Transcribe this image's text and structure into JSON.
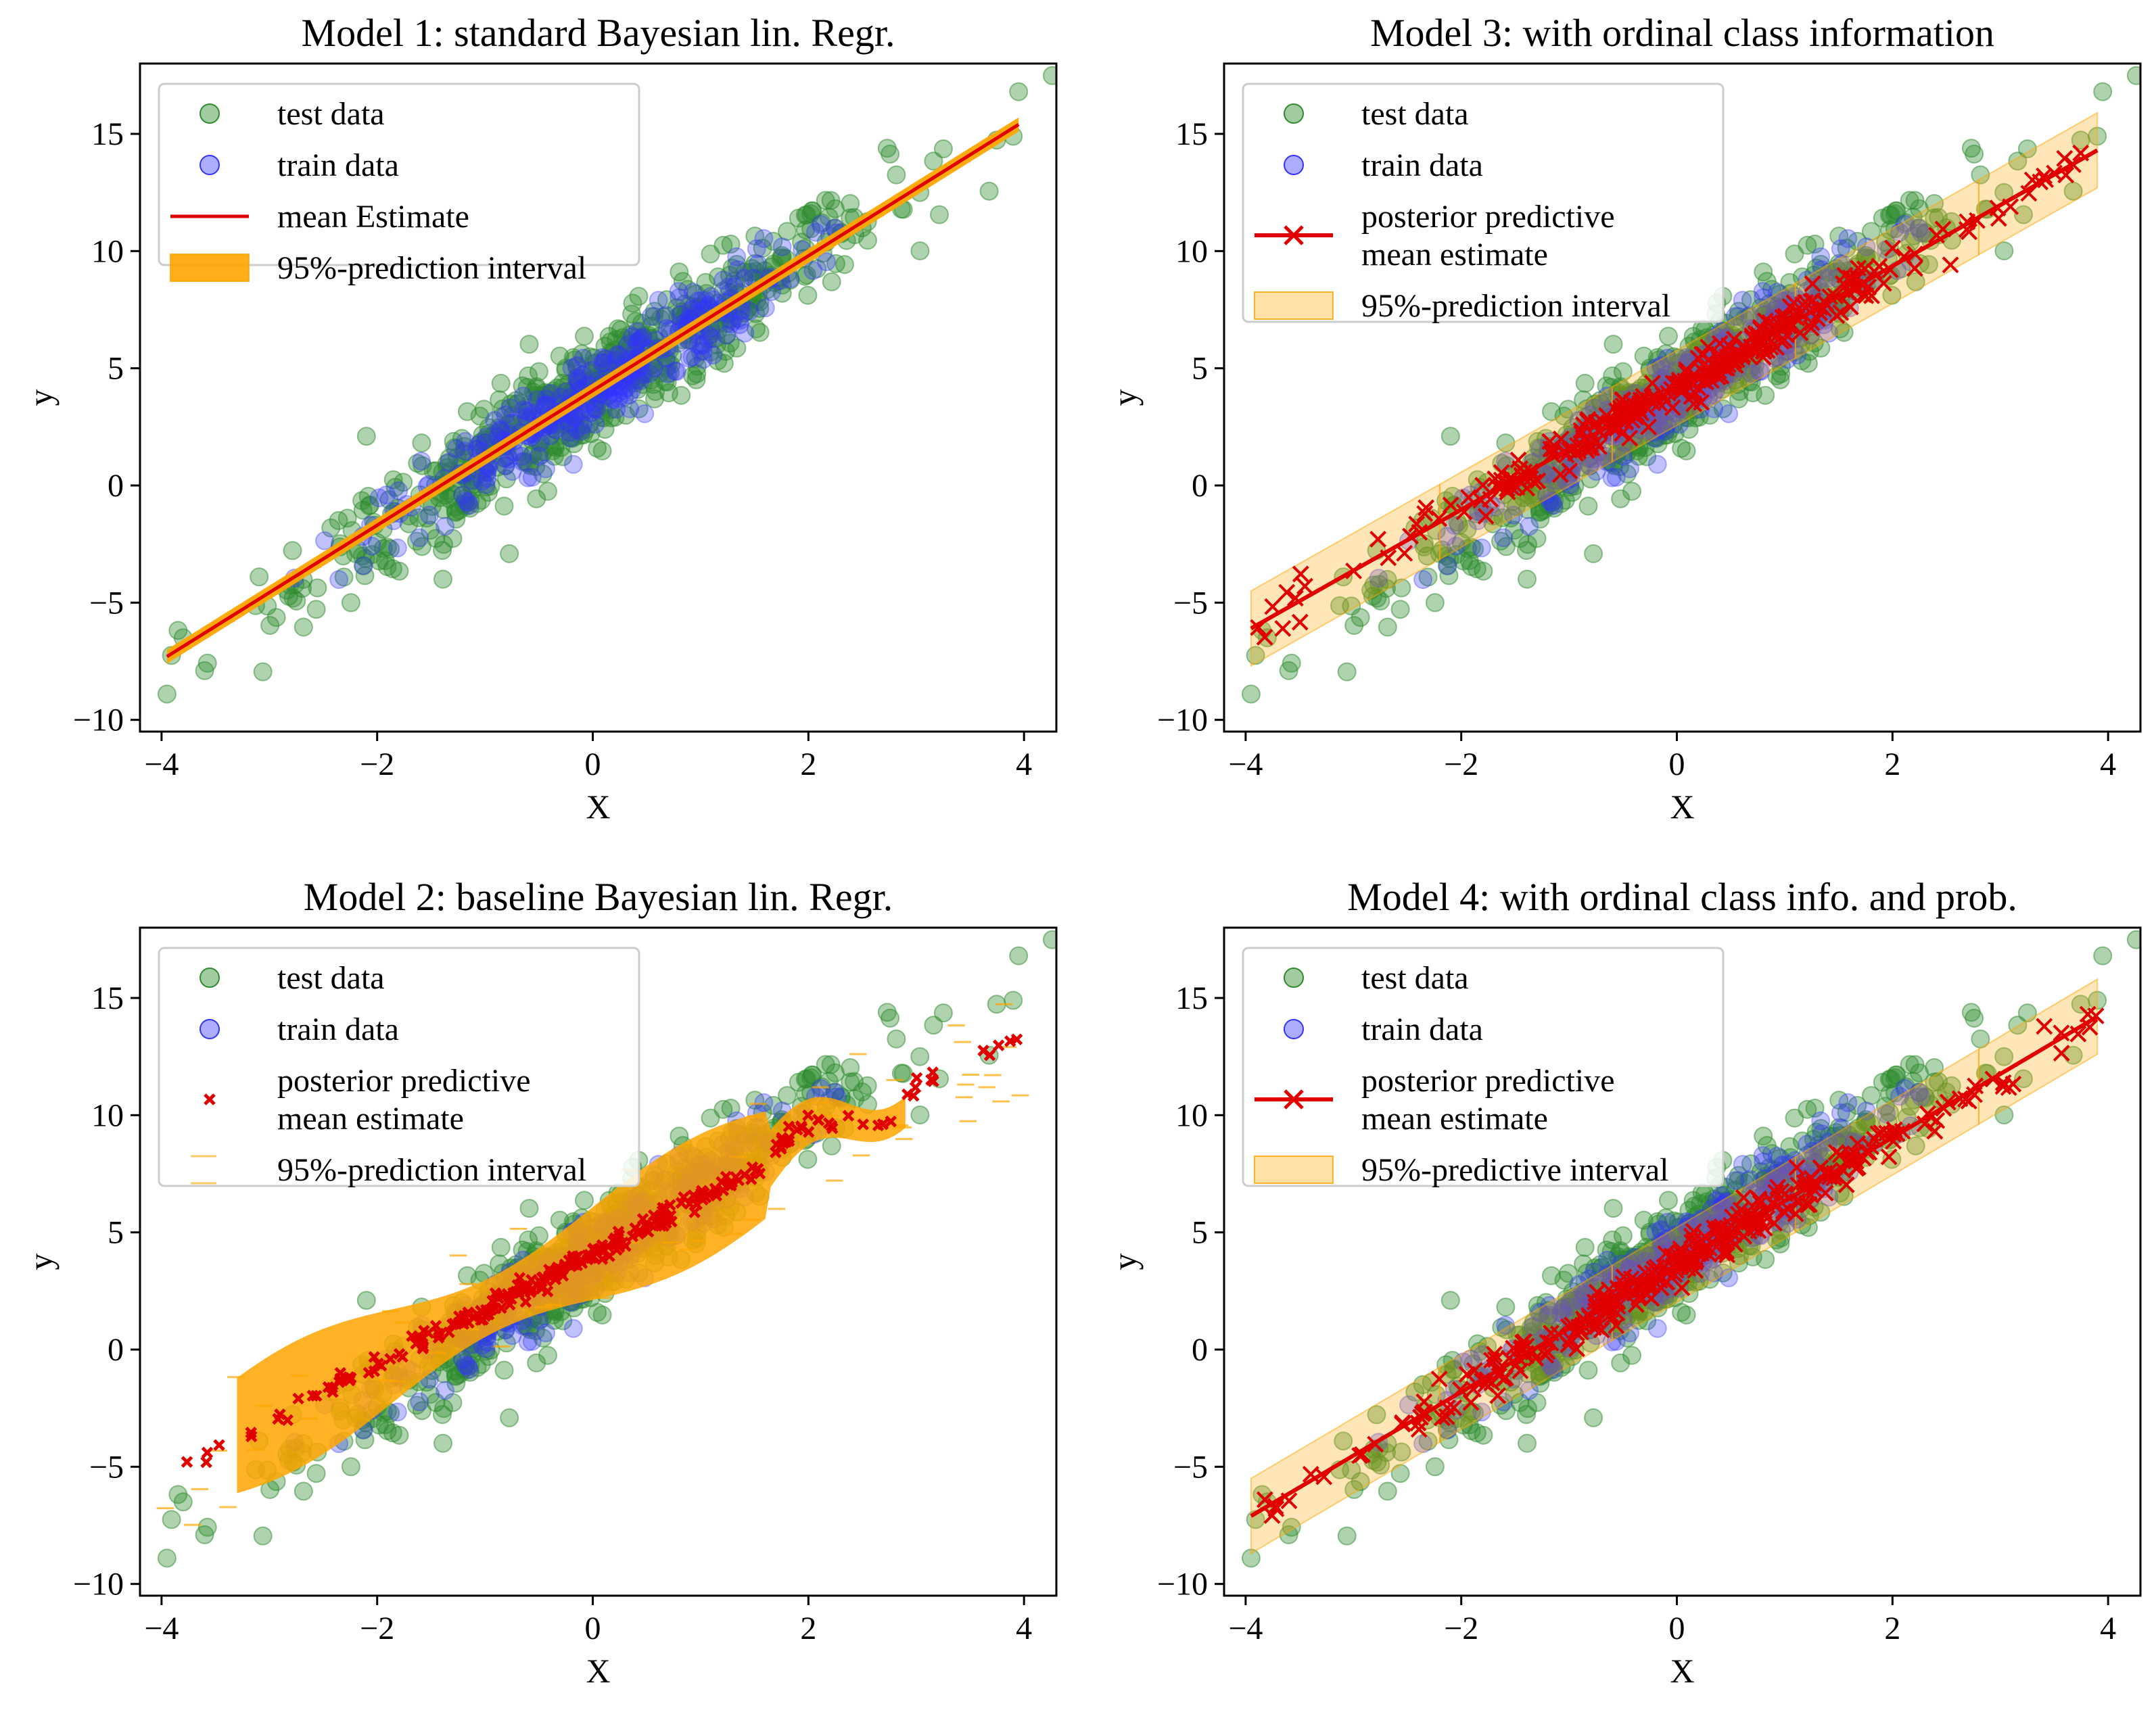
{
  "colors": {
    "test": "#2e8b2e",
    "train": "#3333ff",
    "mean": "#e00000",
    "interval": "#ffa500"
  },
  "chart_data": [
    {
      "type": "scatter",
      "title": "Model 1: standard Bayesian lin. Regr.",
      "xlabel": "X",
      "ylabel": "y",
      "xlim": [
        -4.2,
        4.3
      ],
      "ylim": [
        -10.5,
        18
      ],
      "xticks": [
        "−4",
        "−2",
        "0",
        "2",
        "4"
      ],
      "xtick_values": [
        -4,
        -2,
        0,
        2,
        4
      ],
      "yticks": [
        "−10",
        "−5",
        "0",
        "5",
        "10",
        "15"
      ],
      "ytick_values": [
        -10,
        -5,
        0,
        5,
        10,
        15
      ],
      "legend": {
        "test": "test data",
        "train": "train data",
        "mean": "mean Estimate",
        "interval": "95%-prediction interval"
      },
      "legend_position": "top-left",
      "mean_style": "line",
      "interval_style": "narrow-band",
      "mean_line": {
        "x": [
          -3.95,
          3.95
        ],
        "y": [
          -7.3,
          15.4
        ]
      },
      "interval_halfwidth": 0.3
    },
    {
      "type": "scatter",
      "title": "Model 3: with ordinal class information",
      "xlabel": "X",
      "ylabel": "y",
      "xlim": [
        -4.2,
        4.3
      ],
      "ylim": [
        -10.5,
        18
      ],
      "xticks": [
        "−4",
        "−2",
        "0",
        "2",
        "4"
      ],
      "xtick_values": [
        -4,
        -2,
        0,
        2,
        4
      ],
      "yticks": [
        "−10",
        "−5",
        "0",
        "5",
        "10",
        "15"
      ],
      "ytick_values": [
        -10,
        -5,
        0,
        5,
        10,
        15
      ],
      "legend": {
        "test": "test data",
        "train": "train data",
        "mean": "posterior predictive\nmean estimate",
        "interval": "95%-prediction interval"
      },
      "legend_position": "top-left",
      "mean_style": "line-x",
      "interval_style": "band",
      "mean_line": {
        "x": [
          -3.95,
          3.9
        ],
        "y": [
          -6.1,
          14.3
        ]
      },
      "interval_halfwidth": 1.6
    },
    {
      "type": "scatter",
      "title": "Model 2: baseline Bayesian lin. Regr.",
      "xlabel": "X",
      "ylabel": "y",
      "xlim": [
        -4.2,
        4.3
      ],
      "ylim": [
        -10.5,
        18
      ],
      "xticks": [
        "−4",
        "−2",
        "0",
        "2",
        "4"
      ],
      "xtick_values": [
        -4,
        -2,
        0,
        2,
        4
      ],
      "yticks": [
        "−10",
        "−5",
        "0",
        "5",
        "10",
        "15"
      ],
      "ytick_values": [
        -10,
        -5,
        0,
        5,
        10,
        15
      ],
      "legend": {
        "test": "test data",
        "train": "train data",
        "mean": "posterior predictive\nmean estimate",
        "interval": "95%-prediction interval"
      },
      "legend_position": "top-left",
      "mean_style": "points",
      "interval_style": "wavy-band",
      "mean_line": {
        "x": [
          -3.95,
          3.95
        ],
        "y": [
          -5.2,
          13.4
        ]
      },
      "interval_halfwidth": 2.2
    },
    {
      "type": "scatter",
      "title": "Model 4: with ordinal class info. and prob.",
      "xlabel": "X",
      "ylabel": "y",
      "xlim": [
        -4.2,
        4.3
      ],
      "ylim": [
        -10.5,
        18
      ],
      "xticks": [
        "−4",
        "−2",
        "0",
        "2",
        "4"
      ],
      "xtick_values": [
        -4,
        -2,
        0,
        2,
        4
      ],
      "yticks": [
        "−10",
        "−5",
        "0",
        "5",
        "10",
        "15"
      ],
      "ytick_values": [
        -10,
        -5,
        0,
        5,
        10,
        15
      ],
      "legend": {
        "test": "test data",
        "train": "train data",
        "mean": "posterior predictive\nmean estimate",
        "interval": "95%-predictive interval"
      },
      "legend_position": "top-left",
      "mean_style": "line-x",
      "interval_style": "band",
      "mean_line": {
        "x": [
          -3.95,
          3.9
        ],
        "y": [
          -7.1,
          14.2
        ]
      },
      "interval_halfwidth": 1.6
    }
  ]
}
